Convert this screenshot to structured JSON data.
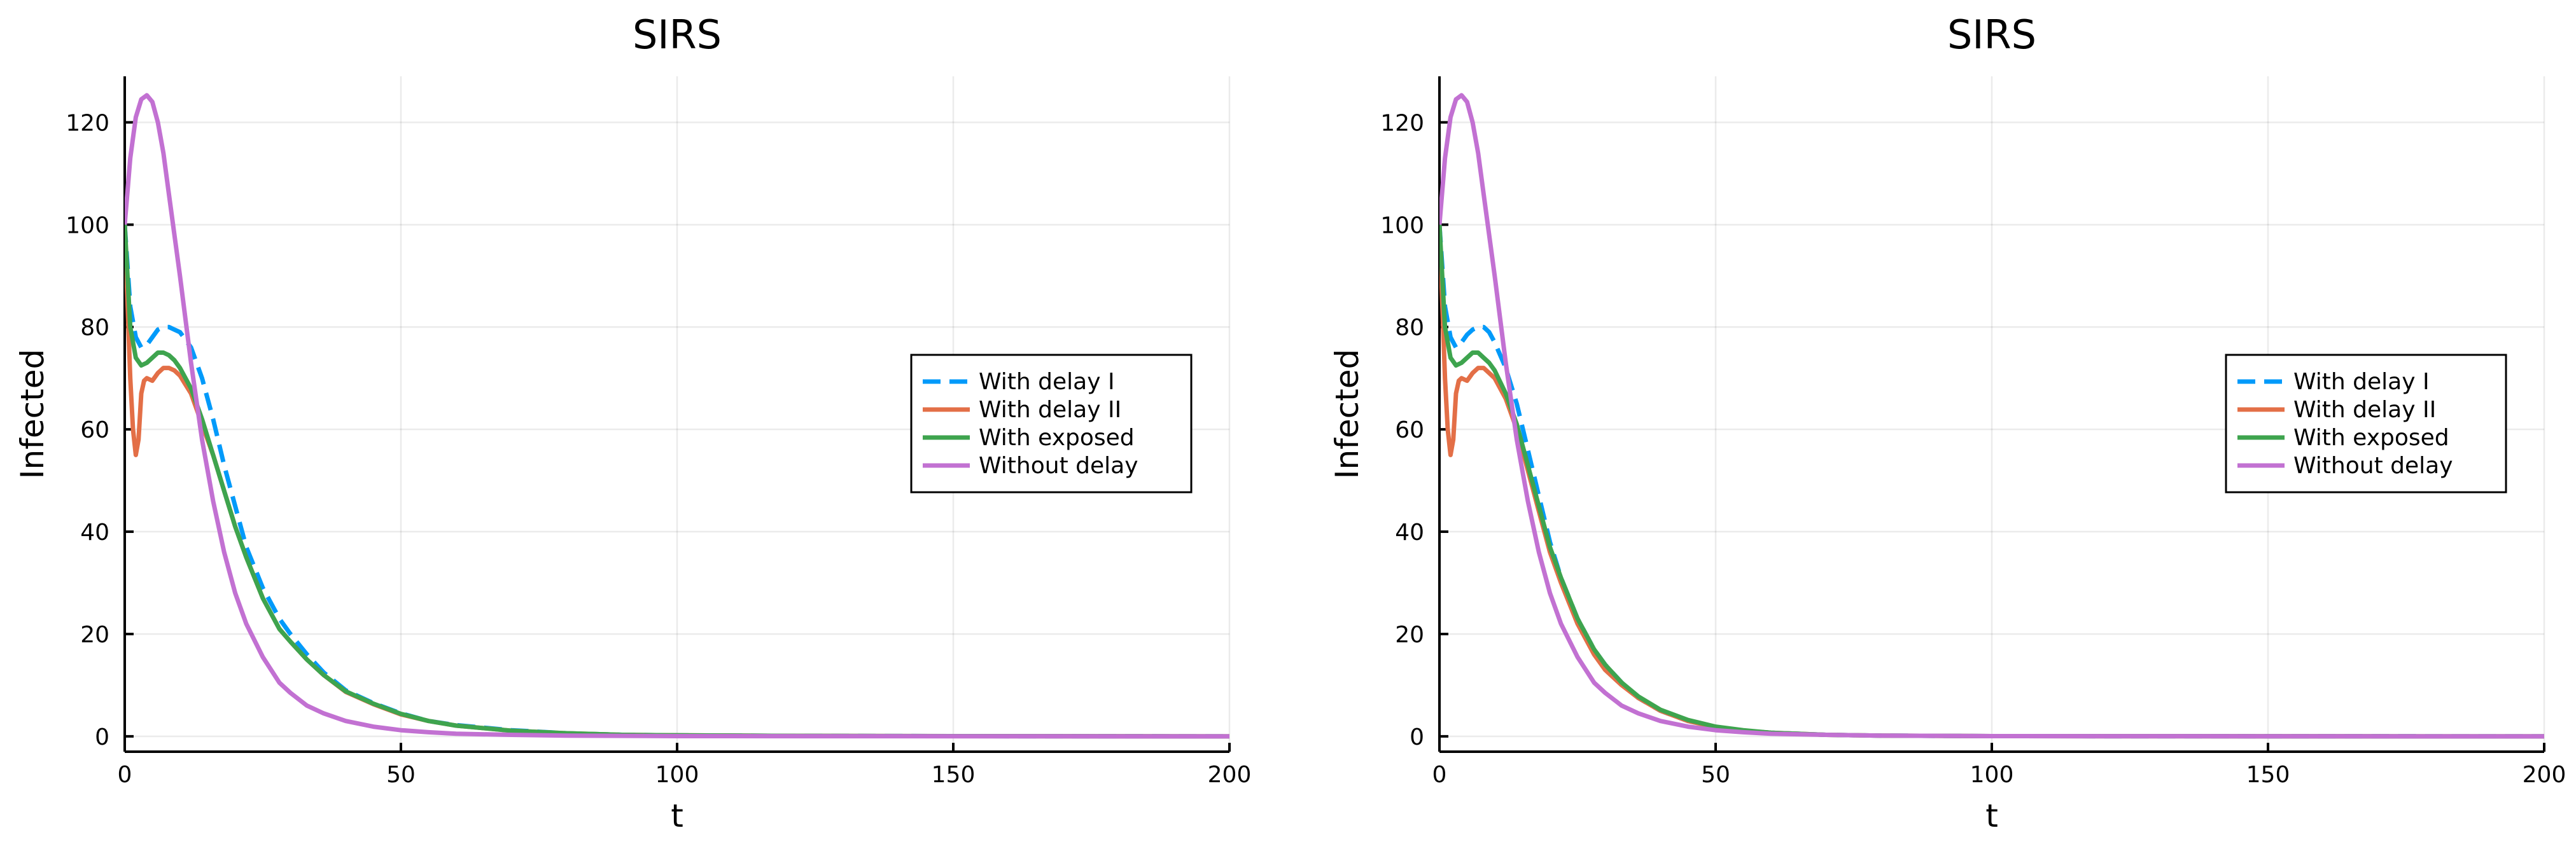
{
  "chart_data": [
    {
      "type": "line",
      "title": "SIRS",
      "xlabel": "t",
      "ylabel": "Infected",
      "xlim": [
        0,
        200
      ],
      "ylim": [
        -3,
        129
      ],
      "xticks": [
        0,
        50,
        100,
        150,
        200
      ],
      "yticks": [
        0,
        20,
        40,
        60,
        80,
        100,
        120
      ],
      "grid": true,
      "legend_position": "right",
      "series": [
        {
          "name": "With  delay I",
          "color": "#009AFA",
          "style": "dashed",
          "points": [
            [
              0,
              100
            ],
            [
              1,
              84
            ],
            [
              2,
              78
            ],
            [
              3,
              76
            ],
            [
              4,
              76.5
            ],
            [
              5,
              78
            ],
            [
              6,
              79.5
            ],
            [
              7,
              80
            ],
            [
              8,
              80
            ],
            [
              9,
              79.5
            ],
            [
              10,
              79
            ],
            [
              12,
              76
            ],
            [
              14,
              70
            ],
            [
              16,
              62
            ],
            [
              18,
              53
            ],
            [
              20,
              45
            ],
            [
              22,
              37
            ],
            [
              25,
              29
            ],
            [
              28,
              23
            ],
            [
              30,
              20
            ],
            [
              33,
              16
            ],
            [
              36,
              12.5
            ],
            [
              40,
              9
            ],
            [
              45,
              6.5
            ],
            [
              50,
              4.5
            ],
            [
              55,
              3
            ],
            [
              60,
              2.2
            ],
            [
              70,
              1.2
            ],
            [
              80,
              0.6
            ],
            [
              90,
              0.3
            ],
            [
              100,
              0.2
            ],
            [
              120,
              0.1
            ],
            [
              150,
              0.05
            ],
            [
              200,
              0
            ]
          ]
        },
        {
          "name": "With  delay II",
          "color": "#E36F47",
          "style": "solid",
          "points": [
            [
              0,
              100
            ],
            [
              0.5,
              85
            ],
            [
              1,
              70
            ],
            [
              1.5,
              60
            ],
            [
              2,
              55
            ],
            [
              2.5,
              58
            ],
            [
              3,
              67
            ],
            [
              3.5,
              69.5
            ],
            [
              4,
              70
            ],
            [
              5,
              69.5
            ],
            [
              6,
              71
            ],
            [
              7,
              72
            ],
            [
              8,
              72
            ],
            [
              9,
              71.5
            ],
            [
              10,
              70.5
            ],
            [
              12,
              67
            ],
            [
              14,
              61
            ],
            [
              16,
              55
            ],
            [
              18,
              48
            ],
            [
              20,
              41
            ],
            [
              22,
              35
            ],
            [
              25,
              27
            ],
            [
              28,
              21
            ],
            [
              30,
              18.5
            ],
            [
              33,
              15
            ],
            [
              36,
              12
            ],
            [
              40,
              8.7
            ],
            [
              45,
              6.3
            ],
            [
              50,
              4.3
            ],
            [
              55,
              3
            ],
            [
              60,
              2.1
            ],
            [
              70,
              1.1
            ],
            [
              80,
              0.6
            ],
            [
              90,
              0.3
            ],
            [
              100,
              0.2
            ],
            [
              120,
              0.1
            ],
            [
              150,
              0.05
            ],
            [
              200,
              0
            ]
          ]
        },
        {
          "name": "With exposed",
          "color": "#3EA44E",
          "style": "solid",
          "points": [
            [
              0,
              100
            ],
            [
              1,
              80
            ],
            [
              2,
              74
            ],
            [
              3,
              72.5
            ],
            [
              4,
              73
            ],
            [
              5,
              74
            ],
            [
              6,
              75
            ],
            [
              7,
              75
            ],
            [
              8,
              74.5
            ],
            [
              9,
              73.5
            ],
            [
              10,
              72
            ],
            [
              12,
              68
            ],
            [
              14,
              62
            ],
            [
              16,
              55
            ],
            [
              18,
              48
            ],
            [
              20,
              41
            ],
            [
              22,
              35
            ],
            [
              25,
              27
            ],
            [
              28,
              21
            ],
            [
              30,
              18.5
            ],
            [
              33,
              15
            ],
            [
              36,
              12
            ],
            [
              40,
              8.8
            ],
            [
              45,
              6.4
            ],
            [
              50,
              4.4
            ],
            [
              55,
              3
            ],
            [
              60,
              2.1
            ],
            [
              70,
              1.1
            ],
            [
              80,
              0.6
            ],
            [
              90,
              0.3
            ],
            [
              100,
              0.2
            ],
            [
              120,
              0.1
            ],
            [
              150,
              0.05
            ],
            [
              200,
              0
            ]
          ]
        },
        {
          "name": "Without delay",
          "color": "#C271D2",
          "style": "solid",
          "points": [
            [
              0,
              100
            ],
            [
              1,
              113
            ],
            [
              2,
              121
            ],
            [
              3,
              124.5
            ],
            [
              4,
              125.3
            ],
            [
              5,
              124
            ],
            [
              6,
              120
            ],
            [
              7,
              114
            ],
            [
              8,
              106
            ],
            [
              10,
              90
            ],
            [
              12,
              73
            ],
            [
              14,
              58
            ],
            [
              16,
              46
            ],
            [
              18,
              36
            ],
            [
              20,
              28
            ],
            [
              22,
              22
            ],
            [
              25,
              15.5
            ],
            [
              28,
              10.5
            ],
            [
              30,
              8.5
            ],
            [
              33,
              6
            ],
            [
              36,
              4.5
            ],
            [
              40,
              3
            ],
            [
              45,
              1.9
            ],
            [
              50,
              1.2
            ],
            [
              55,
              0.8
            ],
            [
              60,
              0.5
            ],
            [
              70,
              0.3
            ],
            [
              80,
              0.15
            ],
            [
              100,
              0.05
            ],
            [
              200,
              0
            ]
          ]
        }
      ]
    },
    {
      "type": "line",
      "title": "SIRS",
      "xlabel": "t",
      "ylabel": "Infected",
      "xlim": [
        0,
        200
      ],
      "ylim": [
        -3,
        129
      ],
      "xticks": [
        0,
        50,
        100,
        150,
        200
      ],
      "yticks": [
        0,
        20,
        40,
        60,
        80,
        100,
        120
      ],
      "grid": true,
      "legend_position": "right",
      "series": [
        {
          "name": "With  delay I",
          "color": "#009AFA",
          "style": "dashed",
          "points": [
            [
              0,
              100
            ],
            [
              1,
              84
            ],
            [
              2,
              78
            ],
            [
              3,
              76
            ],
            [
              4,
              77
            ],
            [
              5,
              78.5
            ],
            [
              6,
              79.5
            ],
            [
              7,
              80
            ],
            [
              8,
              80
            ],
            [
              9,
              79
            ],
            [
              10,
              77
            ],
            [
              12,
              72
            ],
            [
              14,
              65
            ],
            [
              16,
              56
            ],
            [
              18,
              47
            ],
            [
              20,
              38
            ],
            [
              22,
              31
            ],
            [
              25,
              23
            ],
            [
              28,
              17
            ],
            [
              30,
              14
            ],
            [
              33,
              10.5
            ],
            [
              36,
              7.5
            ],
            [
              40,
              5
            ],
            [
              45,
              3
            ],
            [
              50,
              1.8
            ],
            [
              55,
              1.1
            ],
            [
              60,
              0.7
            ],
            [
              70,
              0.3
            ],
            [
              80,
              0.15
            ],
            [
              100,
              0.05
            ],
            [
              200,
              0
            ]
          ]
        },
        {
          "name": "With  delay II",
          "color": "#E36F47",
          "style": "solid",
          "points": [
            [
              0,
              100
            ],
            [
              0.5,
              85
            ],
            [
              1,
              70
            ],
            [
              1.5,
              60
            ],
            [
              2,
              55
            ],
            [
              2.5,
              58
            ],
            [
              3,
              67
            ],
            [
              3.5,
              69.5
            ],
            [
              4,
              70
            ],
            [
              5,
              69.5
            ],
            [
              6,
              71
            ],
            [
              7,
              72
            ],
            [
              8,
              72
            ],
            [
              9,
              71
            ],
            [
              10,
              70
            ],
            [
              12,
              66
            ],
            [
              14,
              60
            ],
            [
              16,
              52
            ],
            [
              18,
              44
            ],
            [
              20,
              36
            ],
            [
              22,
              30
            ],
            [
              25,
              22
            ],
            [
              28,
              16
            ],
            [
              30,
              13
            ],
            [
              33,
              10
            ],
            [
              36,
              7.5
            ],
            [
              40,
              5
            ],
            [
              45,
              3
            ],
            [
              50,
              1.8
            ],
            [
              55,
              1.1
            ],
            [
              60,
              0.7
            ],
            [
              70,
              0.3
            ],
            [
              80,
              0.15
            ],
            [
              100,
              0.05
            ],
            [
              200,
              0
            ]
          ]
        },
        {
          "name": "With exposed",
          "color": "#3EA44E",
          "style": "solid",
          "points": [
            [
              0,
              100
            ],
            [
              1,
              80
            ],
            [
              2,
              74
            ],
            [
              3,
              72.5
            ],
            [
              4,
              73
            ],
            [
              5,
              74
            ],
            [
              6,
              75
            ],
            [
              7,
              75
            ],
            [
              8,
              74
            ],
            [
              9,
              73
            ],
            [
              10,
              71.5
            ],
            [
              12,
              67
            ],
            [
              14,
              61
            ],
            [
              16,
              53
            ],
            [
              18,
              45
            ],
            [
              20,
              37
            ],
            [
              22,
              31
            ],
            [
              25,
              23
            ],
            [
              28,
              17
            ],
            [
              30,
              14
            ],
            [
              33,
              10.5
            ],
            [
              36,
              7.8
            ],
            [
              40,
              5.2
            ],
            [
              45,
              3.2
            ],
            [
              50,
              1.9
            ],
            [
              55,
              1.2
            ],
            [
              60,
              0.7
            ],
            [
              70,
              0.3
            ],
            [
              80,
              0.15
            ],
            [
              100,
              0.05
            ],
            [
              200,
              0
            ]
          ]
        },
        {
          "name": "Without delay",
          "color": "#C271D2",
          "style": "solid",
          "points": [
            [
              0,
              100
            ],
            [
              1,
              113
            ],
            [
              2,
              121
            ],
            [
              3,
              124.5
            ],
            [
              4,
              125.3
            ],
            [
              5,
              124
            ],
            [
              6,
              120
            ],
            [
              7,
              114
            ],
            [
              8,
              106
            ],
            [
              10,
              90
            ],
            [
              12,
              73
            ],
            [
              14,
              58
            ],
            [
              16,
              46
            ],
            [
              18,
              36
            ],
            [
              20,
              28
            ],
            [
              22,
              22
            ],
            [
              25,
              15.5
            ],
            [
              28,
              10.5
            ],
            [
              30,
              8.5
            ],
            [
              33,
              6
            ],
            [
              36,
              4.5
            ],
            [
              40,
              3
            ],
            [
              45,
              1.9
            ],
            [
              50,
              1.2
            ],
            [
              55,
              0.8
            ],
            [
              60,
              0.5
            ],
            [
              70,
              0.3
            ],
            [
              80,
              0.15
            ],
            [
              100,
              0.05
            ],
            [
              200,
              0
            ]
          ]
        }
      ]
    }
  ]
}
